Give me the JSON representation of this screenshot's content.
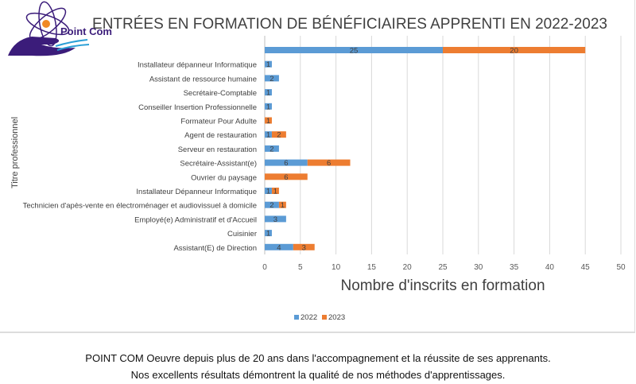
{
  "logo": {
    "text": "Point Com",
    "colors": {
      "hand": "#3b1c7a",
      "orbit": "#3b1c7a",
      "nucleus": "#f08a24",
      "waves": "#2a9fd6"
    }
  },
  "chart_data": {
    "type": "bar",
    "orientation": "horizontal",
    "stacked": true,
    "title": "ENTRÉES EN FORMATION DE BÉNÉFICIAIRES APPRENTI EN 2022-2023",
    "xlabel": "Nombre d'inscrits en formation",
    "ylabel": "Titre professionnel",
    "xlim": [
      0,
      50
    ],
    "xticks": [
      "0",
      "5",
      "10",
      "15",
      "20",
      "25",
      "30",
      "35",
      "40",
      "45",
      "50"
    ],
    "grid": true,
    "legend": "bottom",
    "categories": [
      "",
      "Installateur dépanneur Informatique",
      "Assistant de ressource humaine",
      "Secrétaire-Comptable",
      "Conseiller Insertion Professionnelle",
      "Formateur Pour Adulte",
      "Agent de restauration",
      "Serveur en restauration",
      "Secrétaire-Assistant(e)",
      "Ouvrier du paysage",
      "Installateur Dépanneur Informatique",
      "Technicien d'apès-vente en électroménager et audiovissuel à domicile",
      "Employé(e) Administratif et d'Accueil",
      "Cuisinier",
      "Assistant(E) de Direction"
    ],
    "series": [
      {
        "name": "2022",
        "color": "#5b9bd5",
        "values": [
          25,
          1,
          2,
          1,
          1,
          null,
          1,
          2,
          6,
          null,
          1,
          2,
          3,
          1,
          4
        ]
      },
      {
        "name": "2023",
        "color": "#ed7d31",
        "values": [
          20,
          null,
          null,
          null,
          null,
          1,
          2,
          null,
          6,
          6,
          1,
          1,
          null,
          null,
          3
        ]
      }
    ]
  },
  "footer": {
    "line1": "POINT COM Oeuvre depuis plus de 20 ans dans l'accompagnement et la réussite de ses apprenants.",
    "line2": "Nos excellents résultats démontrent la qualité de nos méthodes d'apprentissages."
  }
}
